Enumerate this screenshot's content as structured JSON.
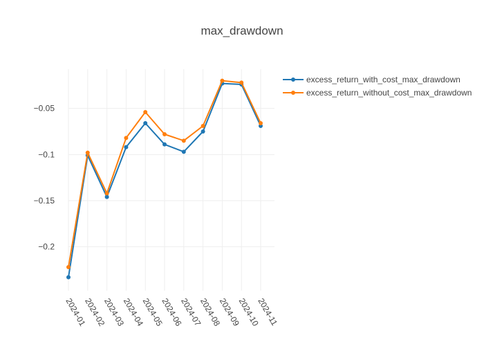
{
  "chart_data": {
    "type": "line",
    "title": "max_drawdown",
    "xlabel": "",
    "ylabel": "",
    "categories": [
      "2024-01",
      "2024-02",
      "2024-03",
      "2024-04",
      "2024-05",
      "2024-06",
      "2024-07",
      "2024-08",
      "2024-09",
      "2024-10",
      "2024-11"
    ],
    "y_ticks": [
      -0.05,
      -0.1,
      -0.15,
      -0.2
    ],
    "y_tick_labels": [
      "−0.05",
      "−0.1",
      "−0.15",
      "−0.2"
    ],
    "ylim": [
      -0.2475,
      -0.0075
    ],
    "grid": true,
    "legend_position": "top-right",
    "series": [
      {
        "name": "excess_return_with_cost_max_drawdown",
        "color": "#1f77b4",
        "values": [
          -0.233,
          -0.101,
          -0.146,
          -0.092,
          -0.066,
          -0.089,
          -0.097,
          -0.075,
          -0.023,
          -0.024,
          -0.069
        ]
      },
      {
        "name": "excess_return_without_cost_max_drawdown",
        "color": "#ff7f0e",
        "values": [
          -0.222,
          -0.098,
          -0.142,
          -0.082,
          -0.054,
          -0.078,
          -0.085,
          -0.069,
          -0.02,
          -0.022,
          -0.066
        ]
      }
    ]
  }
}
